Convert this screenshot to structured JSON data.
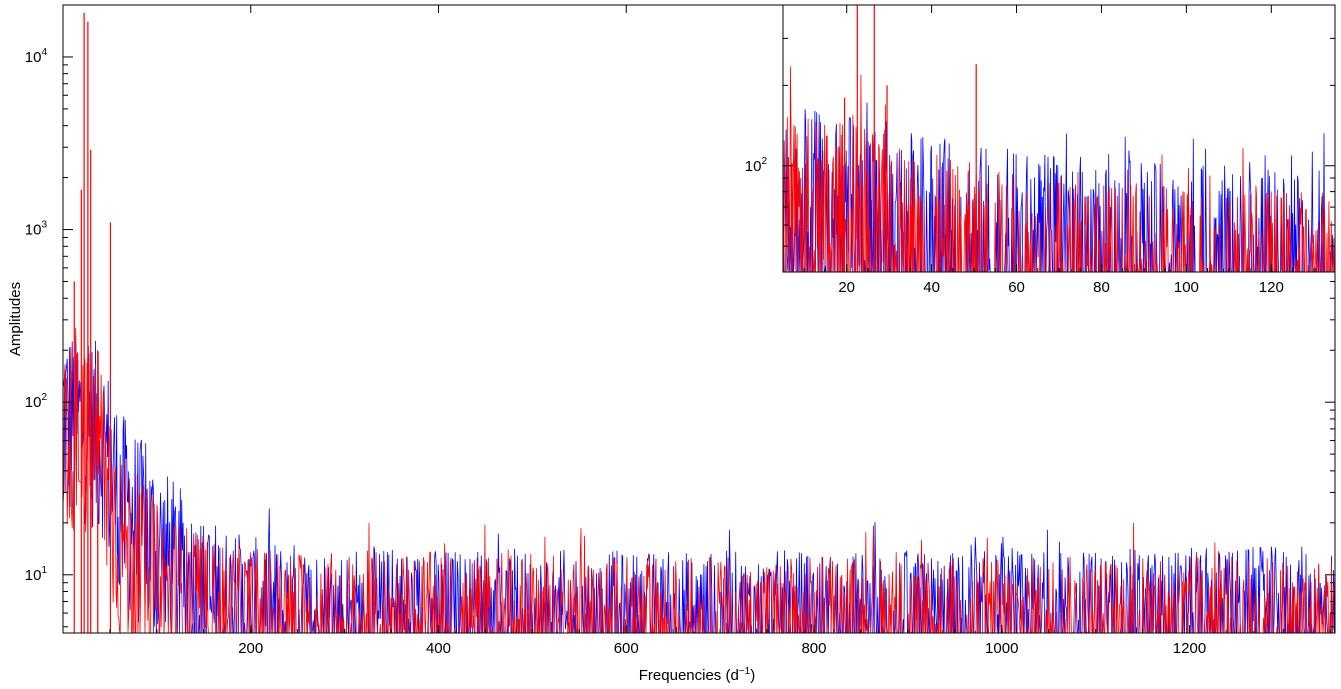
{
  "chart_data": [
    {
      "id": "main",
      "type": "line",
      "title": "",
      "xlabel": "Frequencies (d",
      "xlabel_sup": "−1",
      "xlabel_close": ")",
      "ylabel": "Amplitudes",
      "xlim": [
        0,
        1355
      ],
      "ylim": [
        4.6,
        20000
      ],
      "yscale": "log",
      "grid": false,
      "legend": "none",
      "x_ticks": [
        {
          "value": 200,
          "label": "200"
        },
        {
          "value": 400,
          "label": "400"
        },
        {
          "value": 600,
          "label": "600"
        },
        {
          "value": 800,
          "label": "800"
        },
        {
          "value": 1000,
          "label": "1000"
        },
        {
          "value": 1200,
          "label": "1200"
        }
      ],
      "y_ticks": [
        {
          "value": 10,
          "base": "10",
          "exp": "1"
        },
        {
          "value": 100,
          "base": "10",
          "exp": "2"
        },
        {
          "value": 1000,
          "base": "10",
          "exp": "3"
        },
        {
          "value": 10000,
          "base": "10",
          "exp": "4"
        }
      ],
      "series": [
        {
          "color": "#0000ff",
          "approx_envelope": {
            "x": [
              0,
              40,
              60,
              100,
              150,
              200,
              300,
              600,
              1000,
              1355
            ],
            "y": [
              150,
              120,
              50,
              25,
              12,
              9,
              8,
              7.5,
              7.5,
              8
            ]
          }
        },
        {
          "color": "#ff0000",
          "approx_envelope": {
            "x": [
              0,
              40,
              60,
              100,
              150,
              200,
              300,
              600,
              1000,
              1355
            ],
            "y": [
              130,
              100,
              30,
              14,
              9,
              8,
              7.5,
              7,
              7,
              7
            ]
          },
          "peaks": [
            {
              "x": 19.5,
              "y": 1700
            },
            {
              "x": 22.5,
              "y": 18000
            },
            {
              "x": 26.5,
              "y": 16000
            },
            {
              "x": 29.5,
              "y": 2900
            },
            {
              "x": 50.5,
              "y": 1100
            },
            {
              "x": 12,
              "y": 500
            },
            {
              "x": 37,
              "y": 200
            }
          ]
        }
      ]
    },
    {
      "id": "inset",
      "type": "line",
      "title": "",
      "xlabel": "",
      "ylabel": "",
      "xlim": [
        5,
        135
      ],
      "ylim": [
        40,
        400
      ],
      "yscale": "log",
      "grid": false,
      "legend": "none",
      "x_ticks": [
        {
          "value": 20,
          "label": "20"
        },
        {
          "value": 40,
          "label": "40"
        },
        {
          "value": 60,
          "label": "60"
        },
        {
          "value": 80,
          "label": "80"
        },
        {
          "value": 100,
          "label": "100"
        },
        {
          "value": 120,
          "label": "120"
        }
      ],
      "y_ticks": [
        {
          "value": 100,
          "base": "10",
          "exp": "2"
        }
      ],
      "series": [
        {
          "color": "#0000ff",
          "approx_envelope": {
            "x": [
              5,
              20,
              30,
              40,
              60,
              80,
              100,
              135
            ],
            "y": [
              90,
              85,
              80,
              70,
              62,
              58,
              55,
              52
            ]
          }
        },
        {
          "color": "#ff0000",
          "approx_envelope": {
            "x": [
              5,
              20,
              30,
              40,
              60,
              80,
              100,
              135
            ],
            "y": [
              85,
              80,
              70,
              60,
              52,
              48,
              46,
              45
            ]
          },
          "peaks": [
            {
              "x": 22.5,
              "y": 450
            },
            {
              "x": 26.5,
              "y": 420
            },
            {
              "x": 19.5,
              "y": 180
            },
            {
              "x": 29.5,
              "y": 200
            },
            {
              "x": 50.5,
              "y": 240
            }
          ]
        }
      ]
    }
  ]
}
